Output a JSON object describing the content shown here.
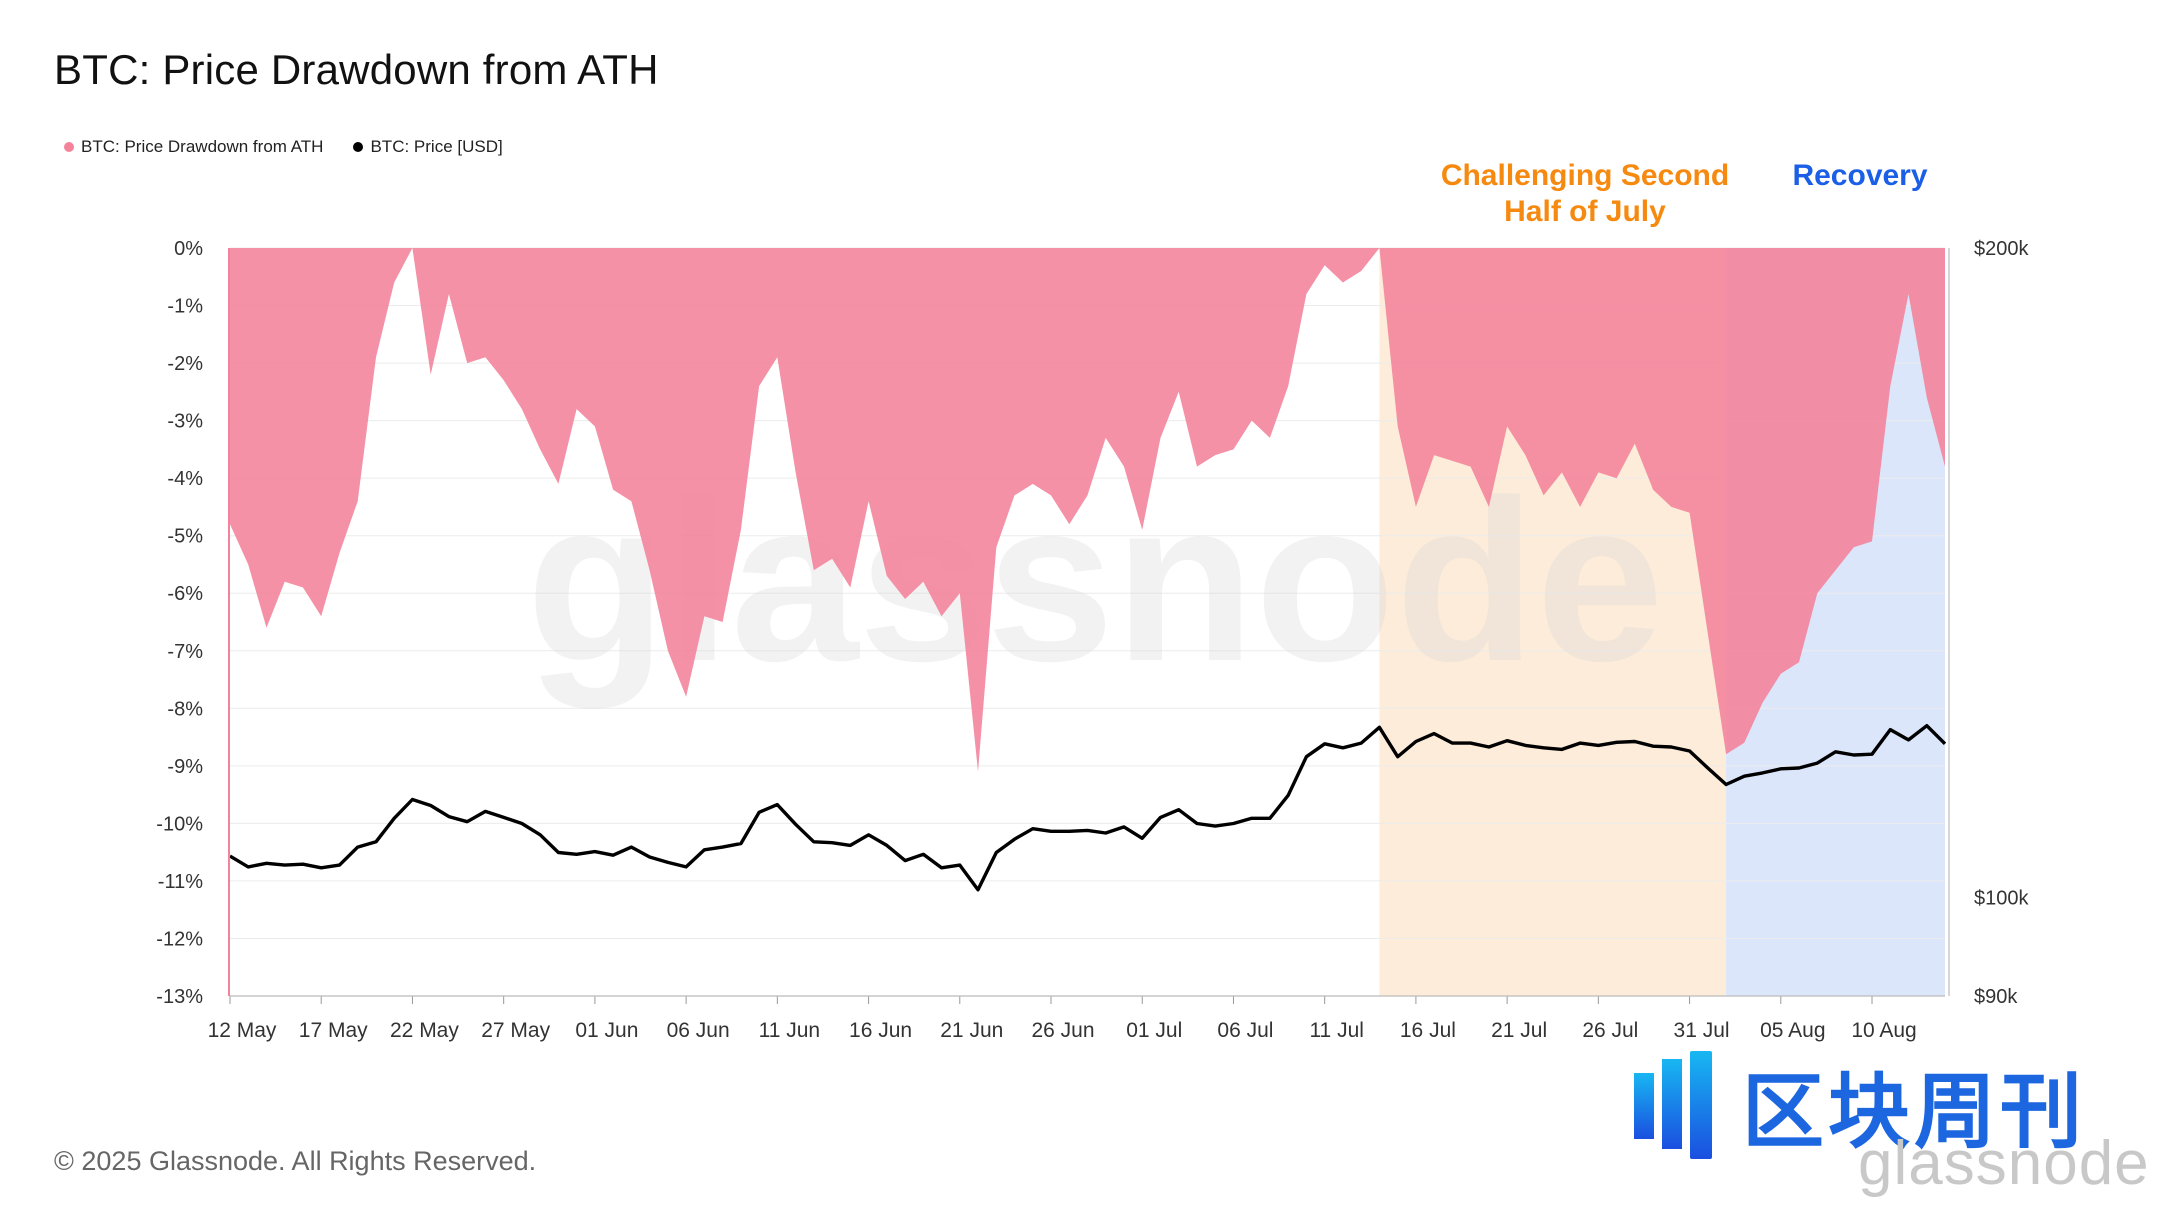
{
  "title": "BTC: Price Drawdown from ATH",
  "legend": [
    {
      "label": "BTC: Price Drawdown from ATH",
      "color": "#f4829a"
    },
    {
      "label": "BTC: Price [USD]",
      "color": "#000000"
    }
  ],
  "annotations": {
    "challenging": "Challenging Second Half of July",
    "recovery": "Recovery"
  },
  "watermark": "glassnode",
  "copyright": "© 2025 Glassnode. All Rights Reserved.",
  "brand": {
    "cn": "区块周刊",
    "sub": "glassnode",
    "logo_icon": "blockweekly-logo-icon"
  },
  "colors": {
    "drawdown_fill": "#f4829a",
    "price_line": "#000000",
    "band_orange": "#fdecd9",
    "band_blue": "#dce6fb",
    "annotation_orange": "#f6890f",
    "annotation_blue": "#1a5fe6"
  },
  "chart_data": {
    "type": "area",
    "x_ticks": [
      "12 May",
      "17 May",
      "22 May",
      "27 May",
      "01 Jun",
      "06 Jun",
      "11 Jun",
      "16 Jun",
      "21 Jun",
      "26 Jun",
      "01 Jul",
      "06 Jul",
      "11 Jul",
      "16 Jul",
      "21 Jul",
      "26 Jul",
      "31 Jul",
      "05 Aug",
      "10 Aug"
    ],
    "y_left_ticks": [
      "0%",
      "-1%",
      "-2%",
      "-3%",
      "-4%",
      "-5%",
      "-6%",
      "-7%",
      "-8%",
      "-9%",
      "-10%",
      "-11%",
      "-12%",
      "-13%"
    ],
    "y_right_ticks": [
      "$200k",
      "$100k",
      "$90k"
    ],
    "y_left_range": [
      -13,
      0
    ],
    "y_right_range_usd": [
      90000,
      200000
    ],
    "y_right_scale": "log",
    "x_range": [
      "2025-05-12",
      "2025-08-14"
    ],
    "highlight_bands": [
      {
        "from": "2025-07-14",
        "to": "2025-08-02",
        "label": "Challenging Second Half of July"
      },
      {
        "from": "2025-08-02",
        "to": "2025-08-14",
        "label": "Recovery"
      }
    ],
    "series": [
      {
        "name": "BTC: Price Drawdown from ATH",
        "unit": "%",
        "x": [
          "2025-05-12",
          "2025-05-13",
          "2025-05-14",
          "2025-05-15",
          "2025-05-16",
          "2025-05-17",
          "2025-05-18",
          "2025-05-19",
          "2025-05-20",
          "2025-05-21",
          "2025-05-22",
          "2025-05-23",
          "2025-05-24",
          "2025-05-25",
          "2025-05-26",
          "2025-05-27",
          "2025-05-28",
          "2025-05-29",
          "2025-05-30",
          "2025-05-31",
          "2025-06-01",
          "2025-06-02",
          "2025-06-03",
          "2025-06-04",
          "2025-06-05",
          "2025-06-06",
          "2025-06-07",
          "2025-06-08",
          "2025-06-09",
          "2025-06-10",
          "2025-06-11",
          "2025-06-12",
          "2025-06-13",
          "2025-06-14",
          "2025-06-15",
          "2025-06-16",
          "2025-06-17",
          "2025-06-18",
          "2025-06-19",
          "2025-06-20",
          "2025-06-21",
          "2025-06-22",
          "2025-06-23",
          "2025-06-24",
          "2025-06-25",
          "2025-06-26",
          "2025-06-27",
          "2025-06-28",
          "2025-06-29",
          "2025-06-30",
          "2025-07-01",
          "2025-07-02",
          "2025-07-03",
          "2025-07-04",
          "2025-07-05",
          "2025-07-06",
          "2025-07-07",
          "2025-07-08",
          "2025-07-09",
          "2025-07-10",
          "2025-07-11",
          "2025-07-12",
          "2025-07-13",
          "2025-07-14",
          "2025-07-15",
          "2025-07-16",
          "2025-07-17",
          "2025-07-18",
          "2025-07-19",
          "2025-07-20",
          "2025-07-21",
          "2025-07-22",
          "2025-07-23",
          "2025-07-24",
          "2025-07-25",
          "2025-07-26",
          "2025-07-27",
          "2025-07-28",
          "2025-07-29",
          "2025-07-30",
          "2025-07-31",
          "2025-08-01",
          "2025-08-02",
          "2025-08-03",
          "2025-08-04",
          "2025-08-05",
          "2025-08-06",
          "2025-08-07",
          "2025-08-08",
          "2025-08-09",
          "2025-08-10",
          "2025-08-11",
          "2025-08-12",
          "2025-08-13",
          "2025-08-14"
        ],
        "values": [
          -4.8,
          -5.5,
          -6.6,
          -5.8,
          -5.9,
          -6.4,
          -5.3,
          -4.4,
          -1.9,
          -0.6,
          0.0,
          -2.2,
          -0.8,
          -2.0,
          -1.9,
          -2.3,
          -2.8,
          -3.5,
          -4.1,
          -2.8,
          -3.1,
          -4.2,
          -4.4,
          -5.6,
          -7.0,
          -7.8,
          -6.4,
          -6.5,
          -4.9,
          -2.4,
          -1.9,
          -3.9,
          -5.6,
          -5.4,
          -5.9,
          -4.4,
          -5.7,
          -6.1,
          -5.8,
          -6.4,
          -6.0,
          -9.1,
          -5.2,
          -4.3,
          -4.1,
          -4.3,
          -4.8,
          -4.3,
          -3.3,
          -3.8,
          -4.9,
          -3.3,
          -2.5,
          -3.8,
          -3.6,
          -3.5,
          -3.0,
          -3.3,
          -2.4,
          -0.8,
          -0.3,
          -0.6,
          -0.4,
          0.0,
          -3.1,
          -4.5,
          -3.6,
          -3.7,
          -3.8,
          -4.5,
          -3.1,
          -3.6,
          -4.3,
          -3.9,
          -4.5,
          -3.9,
          -4.0,
          -3.4,
          -4.2,
          -4.5,
          -4.6,
          -6.7,
          -8.8,
          -8.6,
          -7.9,
          -7.4,
          -7.2,
          -6.0,
          -5.6,
          -5.2,
          -5.1,
          -2.4,
          -0.8,
          -2.6,
          -3.8
        ]
      },
      {
        "name": "BTC: Price [USD]",
        "unit": "USD",
        "x": [
          "2025-05-12",
          "2025-05-13",
          "2025-05-14",
          "2025-05-15",
          "2025-05-16",
          "2025-05-17",
          "2025-05-18",
          "2025-05-19",
          "2025-05-20",
          "2025-05-21",
          "2025-05-22",
          "2025-05-23",
          "2025-05-24",
          "2025-05-25",
          "2025-05-26",
          "2025-05-27",
          "2025-05-28",
          "2025-05-29",
          "2025-05-30",
          "2025-05-31",
          "2025-06-01",
          "2025-06-02",
          "2025-06-03",
          "2025-06-04",
          "2025-06-05",
          "2025-06-06",
          "2025-06-07",
          "2025-06-08",
          "2025-06-09",
          "2025-06-10",
          "2025-06-11",
          "2025-06-12",
          "2025-06-13",
          "2025-06-14",
          "2025-06-15",
          "2025-06-16",
          "2025-06-17",
          "2025-06-18",
          "2025-06-19",
          "2025-06-20",
          "2025-06-21",
          "2025-06-22",
          "2025-06-23",
          "2025-06-24",
          "2025-06-25",
          "2025-06-26",
          "2025-06-27",
          "2025-06-28",
          "2025-06-29",
          "2025-06-30",
          "2025-07-01",
          "2025-07-02",
          "2025-07-03",
          "2025-07-04",
          "2025-07-05",
          "2025-07-06",
          "2025-07-07",
          "2025-07-08",
          "2025-07-09",
          "2025-07-10",
          "2025-07-11",
          "2025-07-12",
          "2025-07-13",
          "2025-07-14",
          "2025-07-15",
          "2025-07-16",
          "2025-07-17",
          "2025-07-18",
          "2025-07-19",
          "2025-07-20",
          "2025-07-21",
          "2025-07-22",
          "2025-07-23",
          "2025-07-24",
          "2025-07-25",
          "2025-07-26",
          "2025-07-27",
          "2025-07-28",
          "2025-07-29",
          "2025-07-30",
          "2025-07-31",
          "2025-08-01",
          "2025-08-02",
          "2025-08-03",
          "2025-08-04",
          "2025-08-05",
          "2025-08-06",
          "2025-08-07",
          "2025-08-08",
          "2025-08-09",
          "2025-08-10",
          "2025-08-11",
          "2025-08-12",
          "2025-08-13",
          "2025-08-14"
        ],
        "values": [
          104500,
          103300,
          103700,
          103500,
          103600,
          103200,
          103500,
          105500,
          106100,
          108800,
          111000,
          110300,
          109000,
          108400,
          109600,
          108900,
          108200,
          106900,
          104900,
          104700,
          105000,
          104600,
          105500,
          104400,
          103800,
          103300,
          105200,
          105500,
          105900,
          109500,
          110400,
          108100,
          106100,
          106000,
          105700,
          106900,
          105700,
          104000,
          104700,
          103200,
          103500,
          100800,
          104900,
          106400,
          107600,
          107300,
          107300,
          107400,
          107100,
          107800,
          106500,
          108900,
          109800,
          108200,
          107900,
          108200,
          108800,
          108800,
          111500,
          116200,
          117800,
          117300,
          117900,
          119900,
          116200,
          118100,
          119100,
          117900,
          117900,
          117400,
          118200,
          117600,
          117300,
          117100,
          117900,
          117600,
          118000,
          118100,
          117500,
          117400,
          116900,
          114800,
          112800,
          113800,
          114200,
          114700,
          114800,
          115400,
          116800,
          116400,
          116500,
          119600,
          118300,
          120100,
          117800
        ]
      }
    ]
  }
}
